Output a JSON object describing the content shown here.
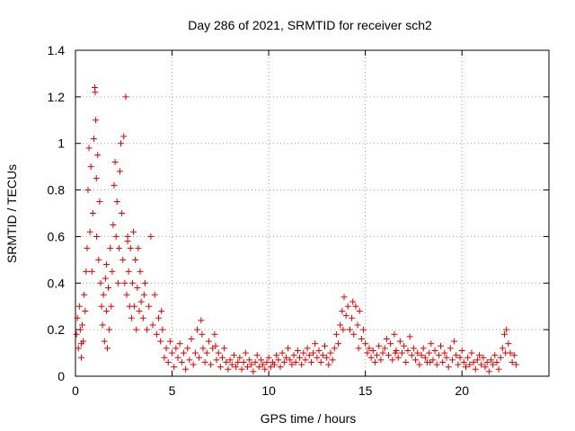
{
  "chart_data": {
    "type": "scatter",
    "title": "Day 286 of 2021, SRMTID for receiver sch2",
    "xlabel": "GPS time / hours",
    "ylabel": "SRMTID / TECUs",
    "xlim": [
      0,
      24.5
    ],
    "ylim": [
      0,
      1.4
    ],
    "x_ticks": [
      0,
      5,
      10,
      15,
      20
    ],
    "x_tick_labels": [
      "0",
      "5",
      "10",
      "15",
      "20"
    ],
    "y_ticks": [
      0,
      0.2,
      0.4,
      0.6,
      0.8,
      1.0,
      1.2,
      1.4
    ],
    "y_tick_labels": [
      "0",
      "0.2",
      "0.4",
      "0.6",
      "0.8",
      "1",
      "1.2",
      "1.4"
    ],
    "grid": true,
    "marker": "+",
    "color": "#e00000",
    "series": [
      {
        "name": "SRMTID",
        "points": [
          [
            0.05,
            0.18
          ],
          [
            0.1,
            0.25
          ],
          [
            0.15,
            0.12
          ],
          [
            0.2,
            0.3
          ],
          [
            0.25,
            0.2
          ],
          [
            0.3,
            0.08
          ],
          [
            0.35,
            0.22
          ],
          [
            0.4,
            0.15
          ],
          [
            0.45,
            0.35
          ],
          [
            0.5,
            0.28
          ],
          [
            0.55,
            0.45
          ],
          [
            0.6,
            0.55
          ],
          [
            0.65,
            0.8
          ],
          [
            0.7,
            0.98
          ],
          [
            0.75,
            0.62
          ],
          [
            0.8,
            0.9
          ],
          [
            0.85,
            0.45
          ],
          [
            0.9,
            0.7
          ],
          [
            0.95,
            1.02
          ],
          [
            1.0,
            1.24
          ],
          [
            1.02,
            1.22
          ],
          [
            1.05,
            1.1
          ],
          [
            1.08,
            0.85
          ],
          [
            1.1,
            0.6
          ],
          [
            1.15,
            0.95
          ],
          [
            1.2,
            0.5
          ],
          [
            1.25,
            0.75
          ],
          [
            1.3,
            0.4
          ],
          [
            1.35,
            0.3
          ],
          [
            1.4,
            0.22
          ],
          [
            1.45,
            0.35
          ],
          [
            1.5,
            0.15
          ],
          [
            1.55,
            0.42
          ],
          [
            1.6,
            0.28
          ],
          [
            1.65,
            0.12
          ],
          [
            1.7,
            0.38
          ],
          [
            1.75,
            0.2
          ],
          [
            1.8,
            0.55
          ],
          [
            1.85,
            0.3
          ],
          [
            1.9,
            0.45
          ],
          [
            1.95,
            0.65
          ],
          [
            2.0,
            0.82
          ],
          [
            2.05,
            0.92
          ],
          [
            2.1,
            0.6
          ],
          [
            2.15,
            0.75
          ],
          [
            2.2,
            0.4
          ],
          [
            2.25,
            0.55
          ],
          [
            2.3,
            0.88
          ],
          [
            2.35,
            1.0
          ],
          [
            2.4,
            0.7
          ],
          [
            2.45,
            0.5
          ],
          [
            2.5,
            1.03
          ],
          [
            2.55,
            0.4
          ],
          [
            2.6,
            1.2
          ],
          [
            2.65,
            0.35
          ],
          [
            2.7,
            0.6
          ],
          [
            2.75,
            0.45
          ],
          [
            2.8,
            0.3
          ],
          [
            2.85,
            0.55
          ],
          [
            2.9,
            0.25
          ],
          [
            2.95,
            0.4
          ],
          [
            3.0,
            0.62
          ],
          [
            3.05,
            0.3
          ],
          [
            3.1,
            0.5
          ],
          [
            3.15,
            0.2
          ],
          [
            3.2,
            0.38
          ],
          [
            3.25,
            0.55
          ],
          [
            3.3,
            0.28
          ],
          [
            3.35,
            0.45
          ],
          [
            3.4,
            0.32
          ],
          [
            3.5,
            0.25
          ],
          [
            3.6,
            0.4
          ],
          [
            3.7,
            0.2
          ],
          [
            3.8,
            0.3
          ],
          [
            3.9,
            0.6
          ],
          [
            4.0,
            0.22
          ],
          [
            4.1,
            0.35
          ],
          [
            4.2,
            0.18
          ],
          [
            4.3,
            0.25
          ],
          [
            4.4,
            0.15
          ],
          [
            4.5,
            0.2
          ],
          [
            4.6,
            0.08
          ],
          [
            4.7,
            0.12
          ],
          [
            4.8,
            0.06
          ],
          [
            4.9,
            0.15
          ],
          [
            5.0,
            0.1
          ],
          [
            5.1,
            0.04
          ],
          [
            5.2,
            0.12
          ],
          [
            5.3,
            0.08
          ],
          [
            5.4,
            0.14
          ],
          [
            5.5,
            0.06
          ],
          [
            5.6,
            0.1
          ],
          [
            5.7,
            0.03
          ],
          [
            5.8,
            0.12
          ],
          [
            5.9,
            0.07
          ],
          [
            6.0,
            0.16
          ],
          [
            6.1,
            0.05
          ],
          [
            6.2,
            0.1
          ],
          [
            6.3,
            0.2
          ],
          [
            6.4,
            0.08
          ],
          [
            6.5,
            0.24
          ],
          [
            6.6,
            0.12
          ],
          [
            6.7,
            0.06
          ],
          [
            6.8,
            0.1
          ],
          [
            6.9,
            0.15
          ],
          [
            7.0,
            0.05
          ],
          [
            7.1,
            0.12
          ],
          [
            7.2,
            0.18
          ],
          [
            7.3,
            0.07
          ],
          [
            7.4,
            0.1
          ],
          [
            7.5,
            0.04
          ],
          [
            7.6,
            0.08
          ],
          [
            7.7,
            0.12
          ],
          [
            7.8,
            0.06
          ],
          [
            7.9,
            0.03
          ],
          [
            8.0,
            0.07
          ],
          [
            8.1,
            0.05
          ],
          [
            8.2,
            0.09
          ],
          [
            8.3,
            0.04
          ],
          [
            8.4,
            0.06
          ],
          [
            8.5,
            0.08
          ],
          [
            8.6,
            0.03
          ],
          [
            8.7,
            0.06
          ],
          [
            8.8,
            0.1
          ],
          [
            8.9,
            0.04
          ],
          [
            9.0,
            0.07
          ],
          [
            9.1,
            0.05
          ],
          [
            9.2,
            0.02
          ],
          [
            9.3,
            0.06
          ],
          [
            9.4,
            0.09
          ],
          [
            9.5,
            0.04
          ],
          [
            9.6,
            0.07
          ],
          [
            9.7,
            0.05
          ],
          [
            9.8,
            0.03
          ],
          [
            9.9,
            0.06
          ],
          [
            10.0,
            0.08
          ],
          [
            10.1,
            0.04
          ],
          [
            10.2,
            0.06
          ],
          [
            10.3,
            0.05
          ],
          [
            10.4,
            0.09
          ],
          [
            10.5,
            0.07
          ],
          [
            10.6,
            0.04
          ],
          [
            10.7,
            0.1
          ],
          [
            10.8,
            0.06
          ],
          [
            10.9,
            0.08
          ],
          [
            11.0,
            0.12
          ],
          [
            11.1,
            0.07
          ],
          [
            11.2,
            0.05
          ],
          [
            11.3,
            0.09
          ],
          [
            11.4,
            0.06
          ],
          [
            11.5,
            0.11
          ],
          [
            11.6,
            0.08
          ],
          [
            11.7,
            0.05
          ],
          [
            11.8,
            0.1
          ],
          [
            11.9,
            0.07
          ],
          [
            12.0,
            0.12
          ],
          [
            12.1,
            0.09
          ],
          [
            12.2,
            0.06
          ],
          [
            12.3,
            0.1
          ],
          [
            12.4,
            0.14
          ],
          [
            12.5,
            0.08
          ],
          [
            12.6,
            0.11
          ],
          [
            12.7,
            0.06
          ],
          [
            12.8,
            0.09
          ],
          [
            12.9,
            0.13
          ],
          [
            13.0,
            0.08
          ],
          [
            13.1,
            0.05
          ],
          [
            13.2,
            0.1
          ],
          [
            13.3,
            0.07
          ],
          [
            13.4,
            0.12
          ],
          [
            13.5,
            0.18
          ],
          [
            13.6,
            0.14
          ],
          [
            13.7,
            0.22
          ],
          [
            13.8,
            0.28
          ],
          [
            13.9,
            0.34
          ],
          [
            14.0,
            0.26
          ],
          [
            14.1,
            0.3
          ],
          [
            14.2,
            0.2
          ],
          [
            14.3,
            0.25
          ],
          [
            14.4,
            0.18
          ],
          [
            14.5,
            0.3
          ],
          [
            14.6,
            0.22
          ],
          [
            14.7,
            0.28
          ],
          [
            14.8,
            0.16
          ],
          [
            14.9,
            0.2
          ],
          [
            15.0,
            0.14
          ],
          [
            15.1,
            0.1
          ],
          [
            15.2,
            0.12
          ],
          [
            15.3,
            0.08
          ],
          [
            15.4,
            0.11
          ],
          [
            15.5,
            0.06
          ],
          [
            15.6,
            0.09
          ],
          [
            15.7,
            0.13
          ],
          [
            15.8,
            0.07
          ],
          [
            15.9,
            0.1
          ],
          [
            16.0,
            0.12
          ],
          [
            16.1,
            0.16
          ],
          [
            16.2,
            0.09
          ],
          [
            16.3,
            0.14
          ],
          [
            16.4,
            0.07
          ],
          [
            16.5,
            0.18
          ],
          [
            16.6,
            0.11
          ],
          [
            16.7,
            0.08
          ],
          [
            16.8,
            0.15
          ],
          [
            16.9,
            0.1
          ],
          [
            17.0,
            0.13
          ],
          [
            17.1,
            0.06
          ],
          [
            17.2,
            0.11
          ],
          [
            17.3,
            0.17
          ],
          [
            17.4,
            0.09
          ],
          [
            17.5,
            0.12
          ],
          [
            17.6,
            0.07
          ],
          [
            17.7,
            0.1
          ],
          [
            17.8,
            0.05
          ],
          [
            17.9,
            0.09
          ],
          [
            18.0,
            0.12
          ],
          [
            18.1,
            0.08
          ],
          [
            18.2,
            0.06
          ],
          [
            18.3,
            0.1
          ],
          [
            18.4,
            0.14
          ],
          [
            18.5,
            0.07
          ],
          [
            18.6,
            0.11
          ],
          [
            18.7,
            0.05
          ],
          [
            18.8,
            0.09
          ],
          [
            18.9,
            0.13
          ],
          [
            19.0,
            0.06
          ],
          [
            19.1,
            0.1
          ],
          [
            19.2,
            0.08
          ],
          [
            19.3,
            0.04
          ],
          [
            19.4,
            0.12
          ],
          [
            19.5,
            0.07
          ],
          [
            19.6,
            0.15
          ],
          [
            19.7,
            0.09
          ],
          [
            19.8,
            0.05
          ],
          [
            19.9,
            0.08
          ],
          [
            20.0,
            0.11
          ],
          [
            20.1,
            0.06
          ],
          [
            20.2,
            0.04
          ],
          [
            20.3,
            0.08
          ],
          [
            20.4,
            0.05
          ],
          [
            20.5,
            0.1
          ],
          [
            20.6,
            0.06
          ],
          [
            20.7,
            0.03
          ],
          [
            20.8,
            0.07
          ],
          [
            20.9,
            0.09
          ],
          [
            21.0,
            0.05
          ],
          [
            21.1,
            0.08
          ],
          [
            21.2,
            0.04
          ],
          [
            21.3,
            0.06
          ],
          [
            21.4,
            0.02
          ],
          [
            21.5,
            0.07
          ],
          [
            21.6,
            0.05
          ],
          [
            21.7,
            0.09
          ],
          [
            21.8,
            0.06
          ],
          [
            21.9,
            0.03
          ],
          [
            22.0,
            0.08
          ],
          [
            22.1,
            0.12
          ],
          [
            22.2,
            0.18
          ],
          [
            22.3,
            0.2
          ],
          [
            22.4,
            0.14
          ],
          [
            22.5,
            0.1
          ],
          [
            22.6,
            0.06
          ],
          [
            22.7,
            0.09
          ],
          [
            22.8,
            0.05
          ],
          [
            0.3,
            0.14
          ],
          [
            1.6,
            0.48
          ],
          [
            2.7,
            0.58
          ],
          [
            3.55,
            0.35
          ],
          [
            4.45,
            0.28
          ],
          [
            6.55,
            0.18
          ],
          [
            7.25,
            0.13
          ],
          [
            13.85,
            0.2
          ],
          [
            14.35,
            0.32
          ],
          [
            14.65,
            0.12
          ],
          [
            16.55,
            0.1
          ],
          [
            18.35,
            0.06
          ],
          [
            22.25,
            0.1
          ]
        ]
      }
    ]
  }
}
